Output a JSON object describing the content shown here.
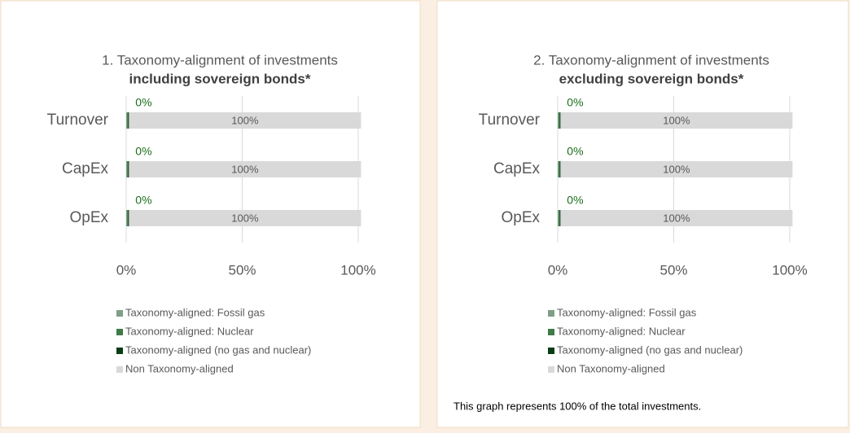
{
  "chart_data": [
    {
      "type": "bar",
      "orientation": "horizontal",
      "stacked": true,
      "title": "1. Taxonomy-alignment of investments",
      "subtitle": "including sovereign bonds*",
      "categories": [
        "Turnover",
        "CapEx",
        "OpEx"
      ],
      "series": [
        {
          "name": "Taxonomy-aligned: Fossil gas",
          "color": "#7f9f86",
          "values": [
            0.4,
            0.4,
            0.4
          ]
        },
        {
          "name": "Taxonomy-aligned: Nuclear",
          "color": "#3f7a49",
          "values": [
            0.4,
            0.4,
            0.4
          ]
        },
        {
          "name": "Taxonomy-aligned (no gas and nuclear)",
          "color": "#0b3d12",
          "values": [
            0.4,
            0.4,
            0.4
          ],
          "value_labels": [
            "0%",
            "0%",
            "0%"
          ]
        },
        {
          "name": "Non Taxonomy-aligned",
          "color": "#d9d9d9",
          "values": [
            100,
            100,
            100
          ],
          "value_labels": [
            "100%",
            "100%",
            "100%"
          ]
        }
      ],
      "xlim": [
        0,
        100
      ],
      "xticks": [
        {
          "value": 0,
          "label": "0%"
        },
        {
          "value": 50,
          "label": "50%"
        },
        {
          "value": 100,
          "label": "100%"
        }
      ],
      "grid": true,
      "legend": "bottom"
    },
    {
      "type": "bar",
      "orientation": "horizontal",
      "stacked": true,
      "title": "2. Taxonomy-alignment of investments",
      "subtitle": "excluding sovereign bonds*",
      "categories": [
        "Turnover",
        "CapEx",
        "OpEx"
      ],
      "series": [
        {
          "name": "Taxonomy-aligned: Fossil gas",
          "color": "#7f9f86",
          "values": [
            0.4,
            0.4,
            0.4
          ]
        },
        {
          "name": "Taxonomy-aligned: Nuclear",
          "color": "#3f7a49",
          "values": [
            0.4,
            0.4,
            0.4
          ]
        },
        {
          "name": "Taxonomy-aligned (no gas and nuclear)",
          "color": "#0b3d12",
          "values": [
            0.4,
            0.4,
            0.4
          ],
          "value_labels": [
            "0%",
            "0%",
            "0%"
          ]
        },
        {
          "name": "Non Taxonomy-aligned",
          "color": "#d9d9d9",
          "values": [
            100,
            100,
            100
          ],
          "value_labels": [
            "100%",
            "100%",
            "100%"
          ]
        }
      ],
      "xlim": [
        0,
        100
      ],
      "xticks": [
        {
          "value": 0,
          "label": "0%"
        },
        {
          "value": 50,
          "label": "50%"
        },
        {
          "value": 100,
          "label": "100%"
        }
      ],
      "grid": true,
      "legend": "bottom",
      "footnote": "This graph represents 100% of the total investments."
    }
  ]
}
